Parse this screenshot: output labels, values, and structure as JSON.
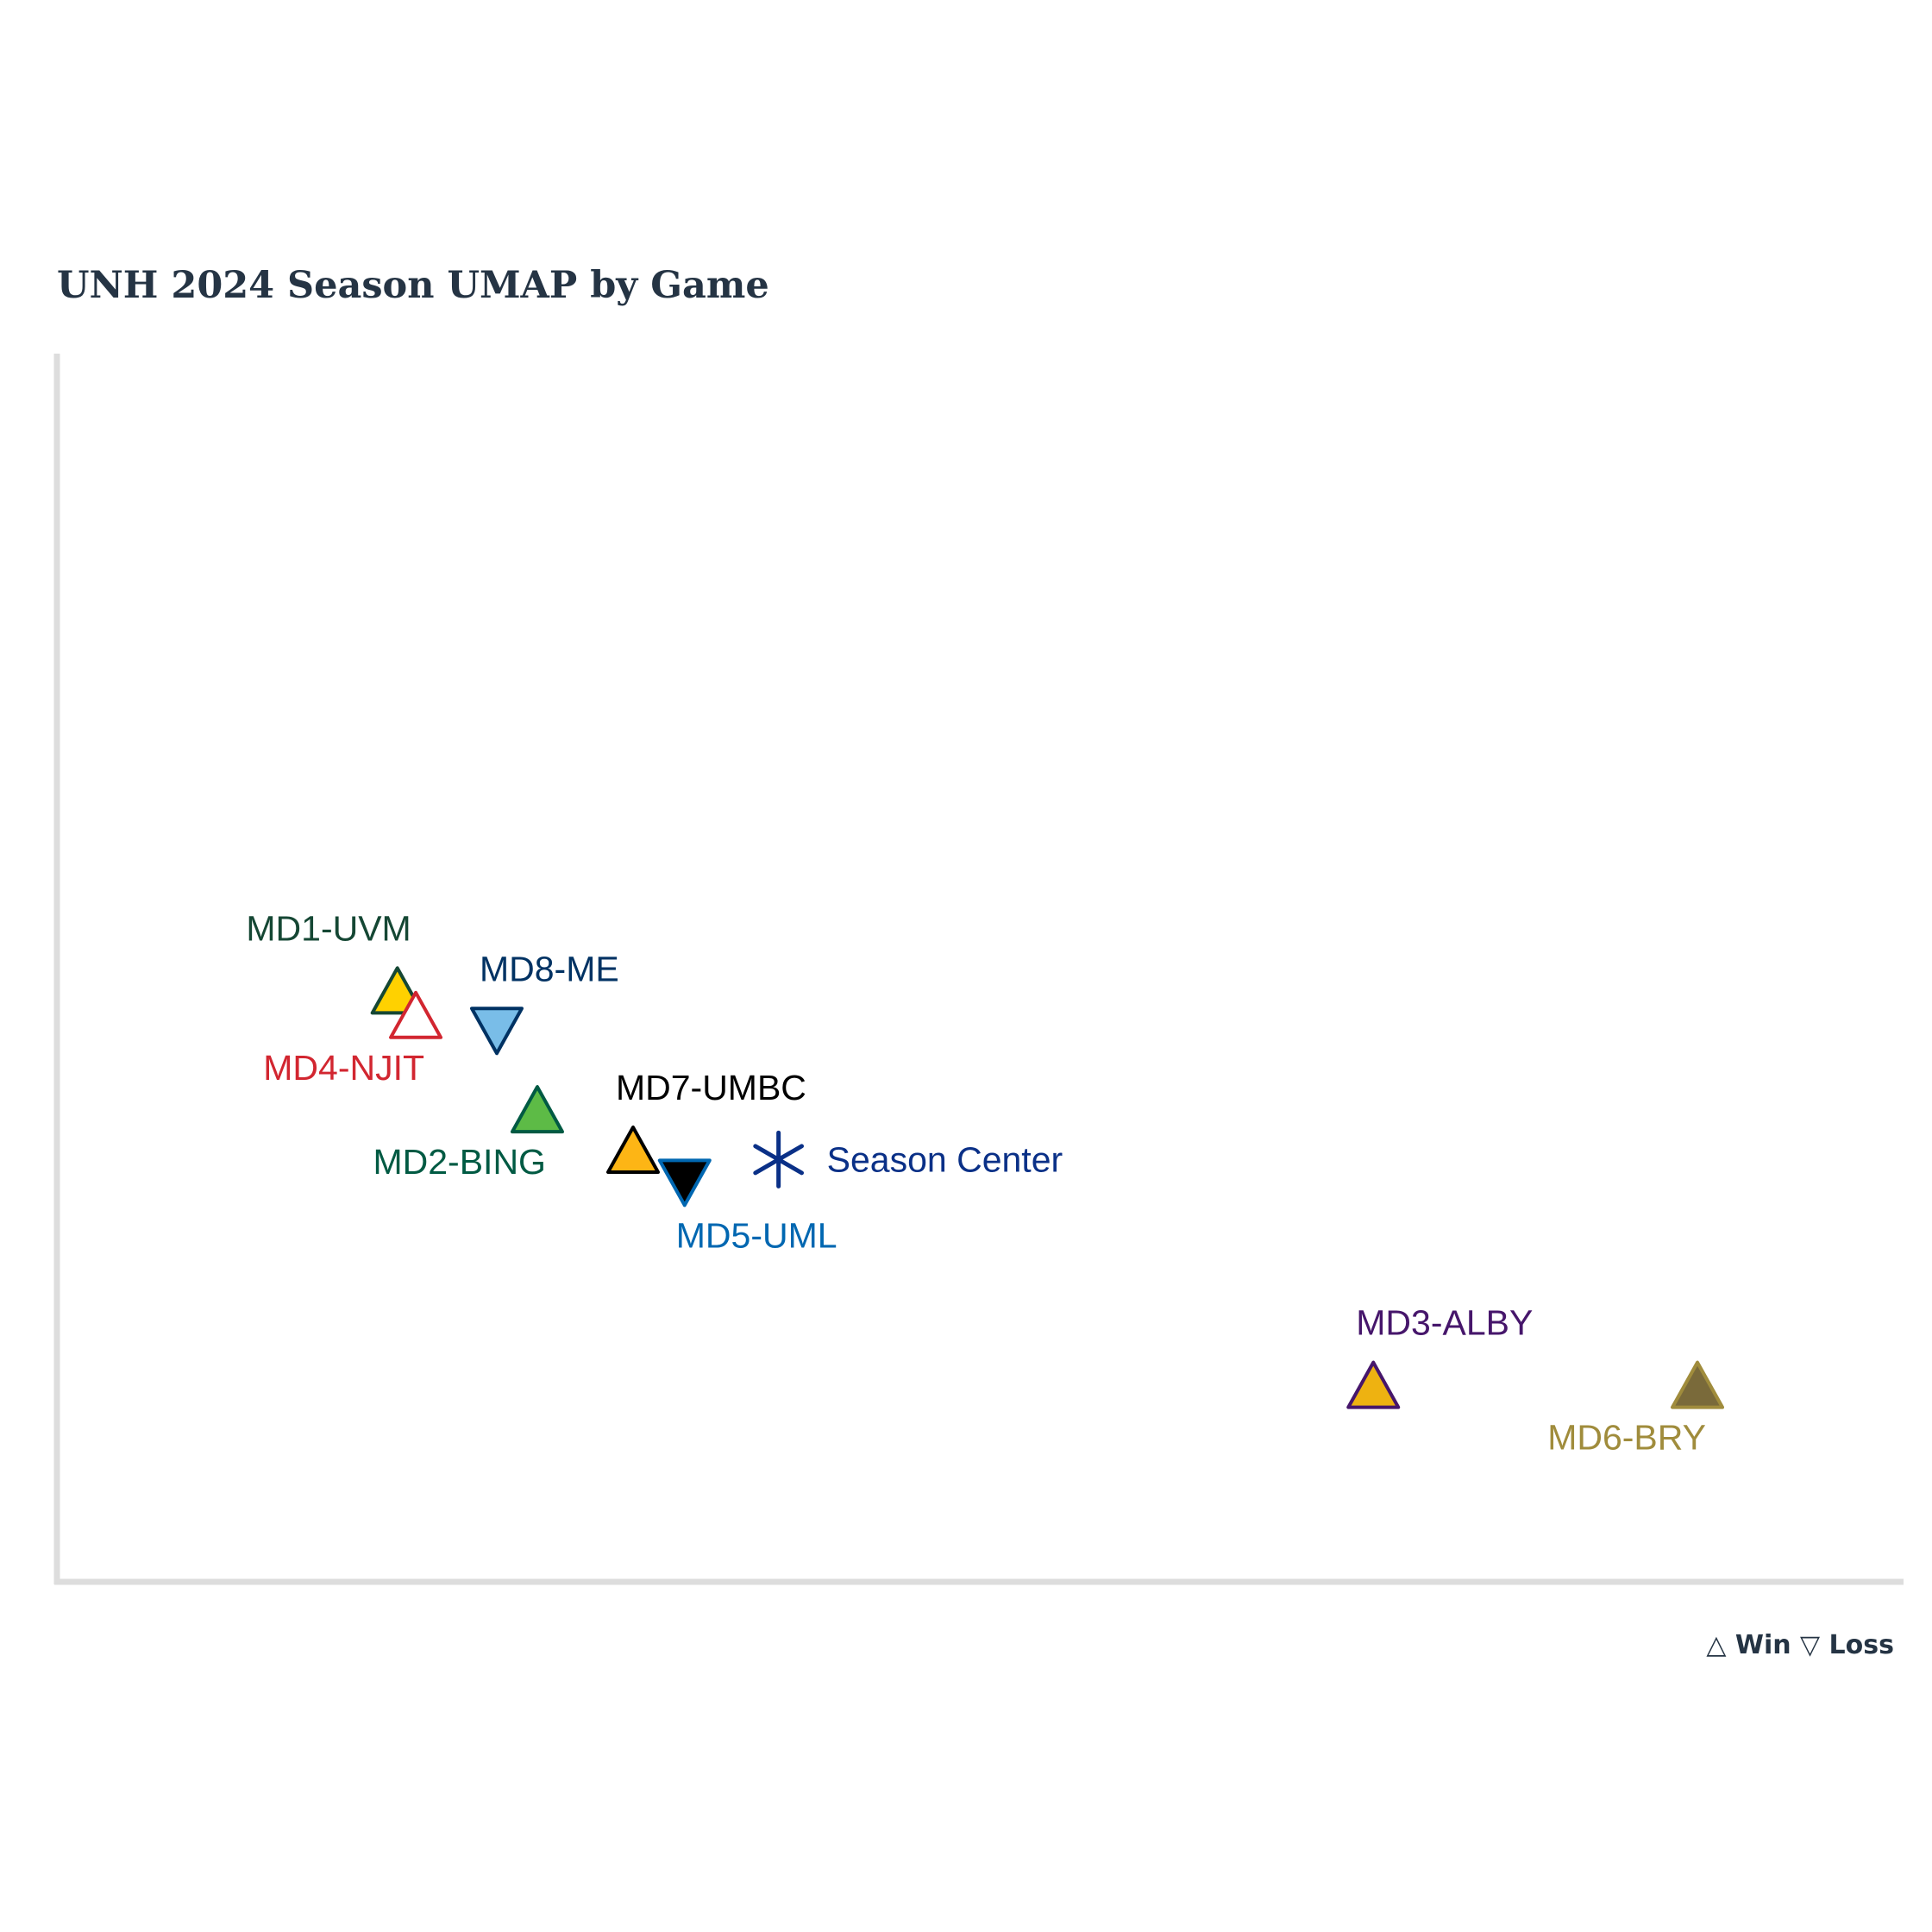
{
  "chart_data": {
    "type": "scatter",
    "title": "UNH 2024 Season UMAP by Game",
    "xlabel": "",
    "ylabel": "",
    "xlim": [
      0,
      100
    ],
    "ylim": [
      0,
      100
    ],
    "grid": false,
    "legend_text": "△ Win ▽ Loss",
    "legend_position": "bottom-right",
    "points": [
      {
        "label": "MD1-UVM",
        "x": 18.3,
        "y": 48.0,
        "result": "Win",
        "fill": "#FFD100",
        "stroke": "#154734",
        "label_color": "#154734",
        "label_pos": "above-left"
      },
      {
        "label": "MD4-NJIT",
        "x": 19.3,
        "y": 46.0,
        "result": "Win",
        "fill": "#FFFFFF",
        "stroke": "#D22630",
        "label_color": "#D22630",
        "label_pos": "below-left"
      },
      {
        "label": "MD8-ME",
        "x": 23.7,
        "y": 44.7,
        "result": "Loss",
        "fill": "#79BDE8",
        "stroke": "#003263",
        "label_color": "#003263",
        "label_pos": "above-right"
      },
      {
        "label": "MD2-BING",
        "x": 25.9,
        "y": 38.3,
        "result": "Win",
        "fill": "#5DBB46",
        "stroke": "#005A43",
        "label_color": "#005A43",
        "label_pos": "below-left"
      },
      {
        "label": "MD7-UMBC",
        "x": 31.1,
        "y": 35.0,
        "result": "Win",
        "fill": "#FDB515",
        "stroke": "#000000",
        "label_color": "#000000",
        "label_pos": "above-right"
      },
      {
        "label": "MD5-UML",
        "x": 33.9,
        "y": 32.3,
        "result": "Loss",
        "fill": "#000000",
        "stroke": "#0067B1",
        "label_color": "#0067B1",
        "label_pos": "below-right"
      },
      {
        "label": "MD3-ALBY",
        "x": 71.3,
        "y": 15.8,
        "result": "Win",
        "fill": "#EEB211",
        "stroke": "#46166B",
        "label_color": "#46166B",
        "label_pos": "above-right"
      },
      {
        "label": "MD6-BRY",
        "x": 88.9,
        "y": 15.8,
        "result": "Win",
        "fill": "#7A6A3A",
        "stroke": "#A08C3C",
        "label_color": "#A08C3C",
        "label_pos": "below-left"
      }
    ],
    "center": {
      "label": "Season Center",
      "x": 39.0,
      "y": 34.2,
      "color": "#0A3087"
    }
  },
  "colors": {
    "axis": "#DDDDDD",
    "title": "#253444"
  }
}
